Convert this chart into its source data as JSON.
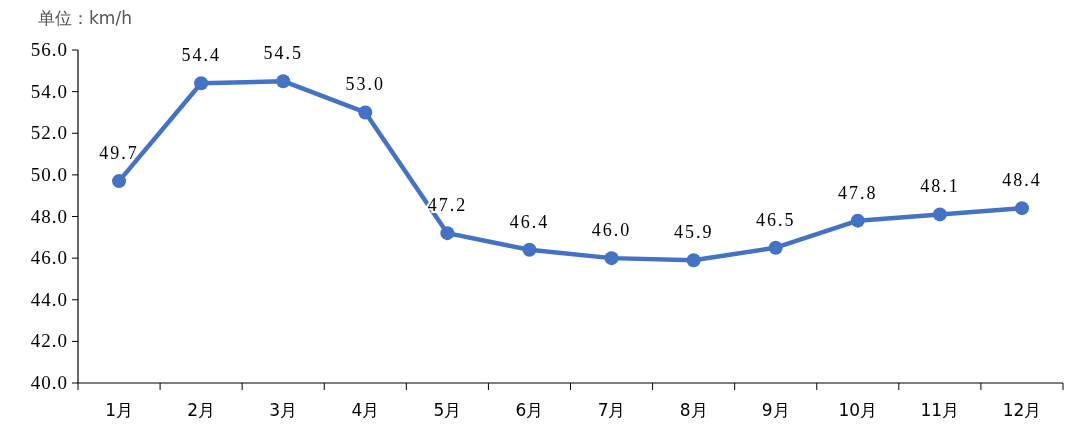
{
  "chart_data": {
    "type": "line",
    "ylabel": "单位：km/h",
    "categories": [
      "1月",
      "2月",
      "3月",
      "4月",
      "5月",
      "6月",
      "7月",
      "8月",
      "9月",
      "10月",
      "11月",
      "12月"
    ],
    "values": [
      49.7,
      54.4,
      54.5,
      53.0,
      47.2,
      46.4,
      46.0,
      45.9,
      46.5,
      47.8,
      48.1,
      48.4
    ],
    "value_labels": [
      "49.7",
      "54.4",
      "54.5",
      "53.0",
      "47.2",
      "46.4",
      "46.0",
      "45.9",
      "46.5",
      "47.8",
      "48.1",
      "48.4"
    ],
    "color": "#4472c4",
    "marker": "circle",
    "line_style": "solid",
    "ylim": [
      40,
      56
    ],
    "yticks": [
      {
        "value": 40,
        "label": "40.0"
      },
      {
        "value": 42,
        "label": "42.0"
      },
      {
        "value": 44,
        "label": "44.0"
      },
      {
        "value": 46,
        "label": "46.0"
      },
      {
        "value": 48,
        "label": "48.0"
      },
      {
        "value": 50,
        "label": "50.0"
      },
      {
        "value": 52,
        "label": "52.0"
      },
      {
        "value": 54,
        "label": "54.0"
      },
      {
        "value": 56,
        "label": "56.0"
      }
    ]
  }
}
